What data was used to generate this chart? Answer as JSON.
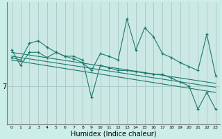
{
  "background_color": "#cceee8",
  "plot_bg_color": "#cce8e4",
  "teal_color": "#1a7a6e",
  "grid_color": "#aaccc8",
  "xlabel": "Humidex (Indice chaleur)",
  "xlabel_fontsize": 7,
  "ylabel_val": "7",
  "hline_y": 7,
  "x_ticks": [
    0,
    1,
    2,
    3,
    4,
    5,
    6,
    7,
    8,
    9,
    10,
    11,
    12,
    13,
    14,
    15,
    16,
    17,
    18,
    19,
    20,
    21,
    22,
    23
  ],
  "xlim": [
    -0.5,
    23.5
  ],
  "ylim": [
    4.0,
    13.5
  ],
  "line1_x": [
    0,
    1,
    2,
    3,
    4,
    5,
    6,
    7,
    8,
    9,
    10,
    11,
    12,
    13,
    14,
    15,
    16,
    17,
    18,
    19,
    20,
    21,
    22,
    23
  ],
  "line1_y": [
    9.2,
    9.0,
    10.3,
    10.5,
    10.0,
    9.6,
    9.3,
    9.1,
    8.8,
    8.2,
    9.5,
    9.3,
    9.0,
    12.2,
    9.8,
    11.5,
    10.8,
    9.5,
    9.2,
    8.8,
    8.5,
    8.2,
    11.0,
    7.8
  ],
  "line2_x": [
    0,
    1,
    2,
    3,
    4,
    5,
    6,
    7,
    8,
    9,
    10,
    11,
    12,
    13,
    14,
    15,
    16,
    17,
    18,
    19,
    20,
    21,
    22,
    23
  ],
  "line2_y": [
    9.8,
    8.6,
    9.6,
    9.6,
    9.2,
    9.6,
    9.3,
    9.3,
    9.0,
    6.1,
    8.6,
    8.4,
    8.2,
    8.2,
    8.1,
    8.0,
    7.9,
    7.9,
    7.6,
    7.3,
    7.0,
    5.2,
    6.5,
    5.2
  ],
  "trend1_x": [
    0,
    23
  ],
  "trend1_y": [
    9.6,
    7.2
  ],
  "trend2_x": [
    0,
    23
  ],
  "trend2_y": [
    9.3,
    6.9
  ],
  "trend3_x": [
    0,
    23
  ],
  "trend3_y": [
    9.0,
    6.5
  ]
}
